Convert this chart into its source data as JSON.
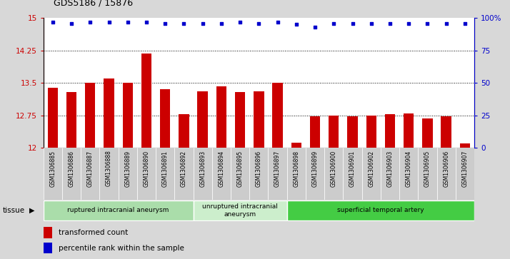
{
  "title": "GDS5186 / 15876",
  "samples": [
    "GSM1306885",
    "GSM1306886",
    "GSM1306887",
    "GSM1306888",
    "GSM1306889",
    "GSM1306890",
    "GSM1306891",
    "GSM1306892",
    "GSM1306893",
    "GSM1306894",
    "GSM1306895",
    "GSM1306896",
    "GSM1306897",
    "GSM1306898",
    "GSM1306899",
    "GSM1306900",
    "GSM1306901",
    "GSM1306902",
    "GSM1306903",
    "GSM1306904",
    "GSM1306905",
    "GSM1306906",
    "GSM1306907"
  ],
  "bar_values": [
    13.38,
    13.28,
    13.5,
    13.6,
    13.5,
    14.18,
    13.35,
    12.78,
    13.3,
    13.42,
    13.28,
    13.3,
    13.5,
    12.12,
    12.72,
    12.74,
    12.72,
    12.74,
    12.78,
    12.8,
    12.68,
    12.72,
    12.1
  ],
  "percentile_values": [
    97,
    96,
    97,
    97,
    97,
    97,
    96,
    96,
    96,
    96,
    97,
    96,
    97,
    95,
    93,
    96,
    96,
    96,
    96,
    96,
    96,
    96,
    96
  ],
  "bar_color": "#cc0000",
  "dot_color": "#0000cc",
  "ylim_left": [
    12,
    15
  ],
  "ylim_right": [
    0,
    100
  ],
  "yticks_left": [
    12,
    12.75,
    13.5,
    14.25,
    15
  ],
  "ytick_labels_left": [
    "12",
    "12.75",
    "13.5",
    "14.25",
    "15"
  ],
  "yticks_right": [
    0,
    25,
    50,
    75,
    100
  ],
  "ytick_labels_right": [
    "0",
    "25",
    "50",
    "75",
    "100%"
  ],
  "hlines": [
    12.75,
    13.5,
    14.25
  ],
  "groups": [
    {
      "label": "ruptured intracranial aneurysm",
      "start": 0,
      "end": 8,
      "color": "#aaddaa"
    },
    {
      "label": "unruptured intracranial\naneurysm",
      "start": 8,
      "end": 13,
      "color": "#cceecc"
    },
    {
      "label": "superficial temporal artery",
      "start": 13,
      "end": 23,
      "color": "#44cc44"
    }
  ],
  "tissue_label": "tissue",
  "legend_bar_label": "transformed count",
  "legend_dot_label": "percentile rank within the sample",
  "bg_color": "#d8d8d8",
  "plot_bg_color": "#ffffff",
  "xtick_bg_color": "#cccccc"
}
